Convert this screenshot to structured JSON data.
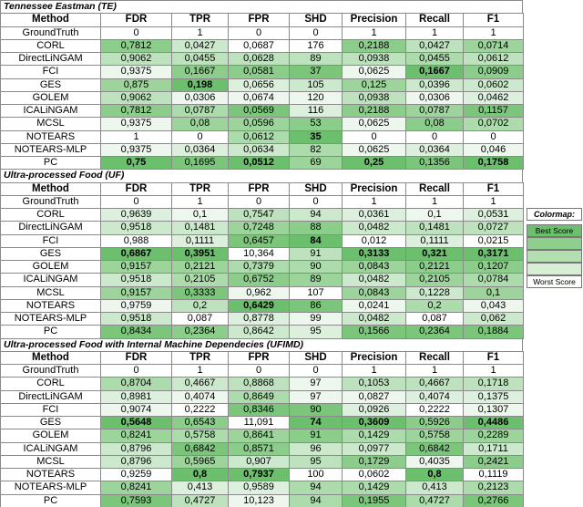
{
  "sections": [
    {
      "title": "Tennessee Eastman (TE)",
      "columns": [
        "Method",
        "FDR",
        "TPR",
        "FPR",
        "SHD",
        "Precision",
        "Recall",
        "F1"
      ],
      "rows": [
        [
          "GroundTruth",
          "0",
          "1",
          "0",
          "0",
          "1",
          "1",
          "1"
        ],
        [
          "CORL",
          "0,7812",
          "0,0427",
          "0,0687",
          "176",
          "0,2188",
          "0,0427",
          "0,0714"
        ],
        [
          "DirectLiNGAM",
          "0,9062",
          "0,0455",
          "0,0628",
          "89",
          "0,0938",
          "0,0455",
          "0,0612"
        ],
        [
          "FCI",
          "0,9375",
          "0,1667",
          "0,0581",
          "37",
          "0,0625",
          "0,1667",
          "0,0909"
        ],
        [
          "GES",
          "0,875",
          "0,198",
          "0,0656",
          "105",
          "0,125",
          "0,0396",
          "0,0602"
        ],
        [
          "GOLEM",
          "0,9062",
          "0,0306",
          "0,0674",
          "120",
          "0,0938",
          "0,0306",
          "0,0462"
        ],
        [
          "ICALiNGAM",
          "0,7812",
          "0,0787",
          "0,0569",
          "116",
          "0,2188",
          "0,0787",
          "0,1157"
        ],
        [
          "MCSL",
          "0,9375",
          "0,08",
          "0,0596",
          "53",
          "0,0625",
          "0,08",
          "0,0702"
        ],
        [
          "NOTEARS",
          "1",
          "0",
          "0,0612",
          "35",
          "0",
          "0",
          "0"
        ],
        [
          "NOTEARS-MLP",
          "0,9375",
          "0,0364",
          "0,0634",
          "82",
          "0,0625",
          "0,0364",
          "0,046"
        ],
        [
          "PC",
          "0,75",
          "0,1695",
          "0,0512",
          "69",
          "0,25",
          "0,1356",
          "0,1758"
        ]
      ]
    },
    {
      "title": "Ultra-processed Food (UF)",
      "columns": [
        "Method",
        "FDR",
        "TPR",
        "FPR",
        "SHD",
        "Precision",
        "Recall",
        "F1"
      ],
      "rows": [
        [
          "GroundTruth",
          "0",
          "1",
          "0",
          "0",
          "1",
          "1",
          "1"
        ],
        [
          "CORL",
          "0,9639",
          "0,1",
          "0,7547",
          "94",
          "0,0361",
          "0,1",
          "0,0531"
        ],
        [
          "DirectLiNGAM",
          "0,9518",
          "0,1481",
          "0,7248",
          "88",
          "0,0482",
          "0,1481",
          "0,0727"
        ],
        [
          "FCI",
          "0,988",
          "0,1111",
          "0,6457",
          "84",
          "0,012",
          "0,1111",
          "0,0215"
        ],
        [
          "GES",
          "0,6867",
          "0,3951",
          "10,364",
          "91",
          "0,3133",
          "0,321",
          "0,3171"
        ],
        [
          "GOLEM",
          "0,9157",
          "0,2121",
          "0,7379",
          "90",
          "0,0843",
          "0,2121",
          "0,1207"
        ],
        [
          "ICALiNGAM",
          "0,9518",
          "0,2105",
          "0,6752",
          "89",
          "0,0482",
          "0,2105",
          "0,0784"
        ],
        [
          "MCSL",
          "0,9157",
          "0,3333",
          "0,962",
          "107",
          "0,0843",
          "0,1228",
          "0,1"
        ],
        [
          "NOTEARS",
          "0,9759",
          "0,2",
          "0,6429",
          "86",
          "0,0241",
          "0,2",
          "0,043"
        ],
        [
          "NOTEARS-MLP",
          "0,9518",
          "0,087",
          "0,8778",
          "99",
          "0,0482",
          "0,087",
          "0,062"
        ],
        [
          "PC",
          "0,8434",
          "0,2364",
          "0,8642",
          "95",
          "0,1566",
          "0,2364",
          "0,1884"
        ]
      ]
    },
    {
      "title": "Ultra-processed Food with Internal Machine Dependecies (UFIMD)",
      "columns": [
        "Method",
        "FDR",
        "TPR",
        "FPR",
        "SHD",
        "Precision",
        "Recall",
        "F1"
      ],
      "rows": [
        [
          "GroundTruth",
          "0",
          "1",
          "0",
          "0",
          "1",
          "1",
          "1"
        ],
        [
          "CORL",
          "0,8704",
          "0,4667",
          "0,8868",
          "97",
          "0,1053",
          "0,4667",
          "0,1718"
        ],
        [
          "DirectLiNGAM",
          "0,8981",
          "0,4074",
          "0,8649",
          "97",
          "0,0827",
          "0,4074",
          "0,1375"
        ],
        [
          "FCI",
          "0,9074",
          "0,2222",
          "0,8346",
          "90",
          "0,0926",
          "0,2222",
          "0,1307"
        ],
        [
          "GES",
          "0,5648",
          "0,6543",
          "11,091",
          "74",
          "0,3609",
          "0,5926",
          "0,4486"
        ],
        [
          "GOLEM",
          "0,8241",
          "0,5758",
          "0,8641",
          "91",
          "0,1429",
          "0,5758",
          "0,2289"
        ],
        [
          "ICALiNGAM",
          "0,8796",
          "0,6842",
          "0,8571",
          "96",
          "0,0977",
          "0,6842",
          "0,1711"
        ],
        [
          "MCSL",
          "0,8796",
          "0,5965",
          "0,907",
          "95",
          "0,1729",
          "0,4035",
          "0,2421"
        ],
        [
          "NOTEARS",
          "0,9259",
          "0,8",
          "0,7937",
          "100",
          "0,0602",
          "0,8",
          "0,1119"
        ],
        [
          "NOTEARS-MLP",
          "0,8241",
          "0,413",
          "0,9589",
          "94",
          "0,1429",
          "0,413",
          "0,2123"
        ],
        [
          "PC",
          "0,7593",
          "0,4727",
          "10,123",
          "94",
          "0,1955",
          "0,4727",
          "0,2766"
        ]
      ]
    }
  ],
  "legend": {
    "title": "Colormap:",
    "best": "Best Score",
    "worst": "Worst Score"
  }
}
